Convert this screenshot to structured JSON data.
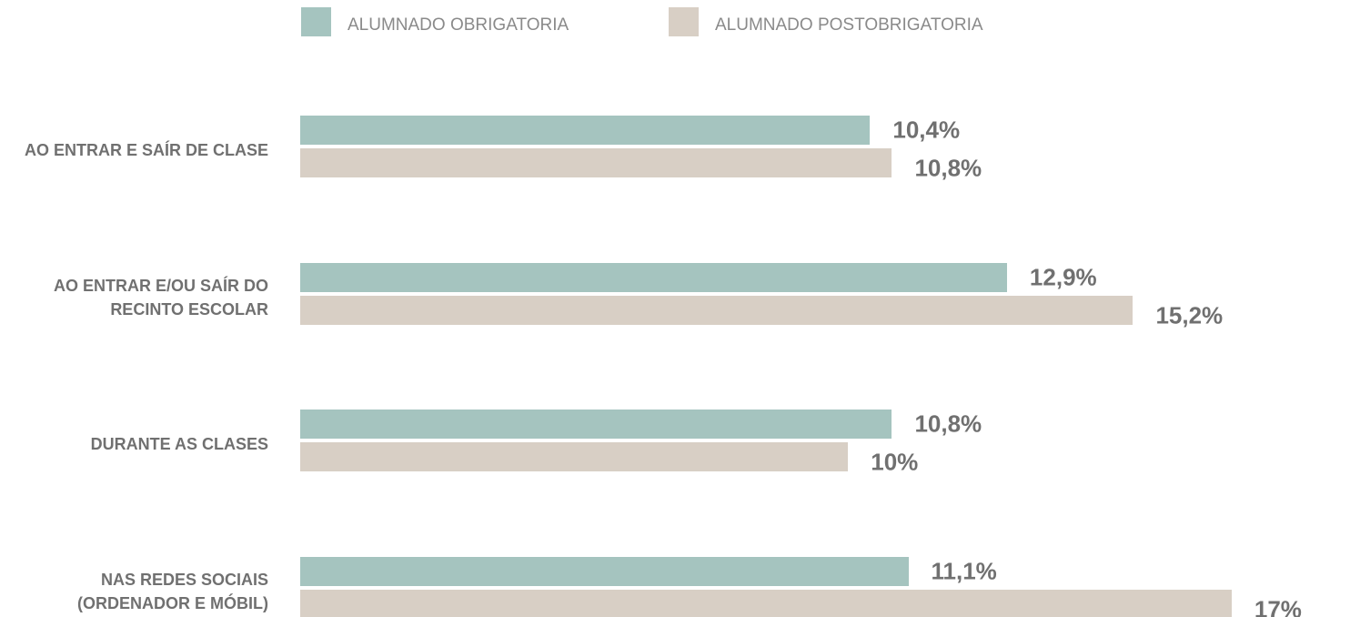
{
  "chart_data": {
    "type": "barh",
    "categories": [
      "AO ENTRAR E SAÍR DE CLASE",
      "AO ENTRAR E/OU SAÍR DO RECINTO ESCOLAR",
      "DURANTE AS CLASES",
      "NAS REDES SOCIAIS (ORDENADOR E MÓBIL)"
    ],
    "series": [
      {
        "name": "ALUMNADO OBRIGATORIA",
        "color": "#a5c4bf",
        "values": [
          10.4,
          12.9,
          10.8,
          11.1
        ],
        "value_labels": [
          "10,4%",
          "12,9%",
          "10,8%",
          "11,1%"
        ]
      },
      {
        "name": "ALUMNADO POSTOBRIGATORIA",
        "color": "#d8cfc5",
        "values": [
          10.8,
          15.2,
          10,
          17
        ],
        "value_labels": [
          "10,8%",
          "15,2%",
          "10%",
          "17%"
        ]
      }
    ],
    "xlim": [
      0,
      17.6
    ],
    "legend": "top"
  }
}
